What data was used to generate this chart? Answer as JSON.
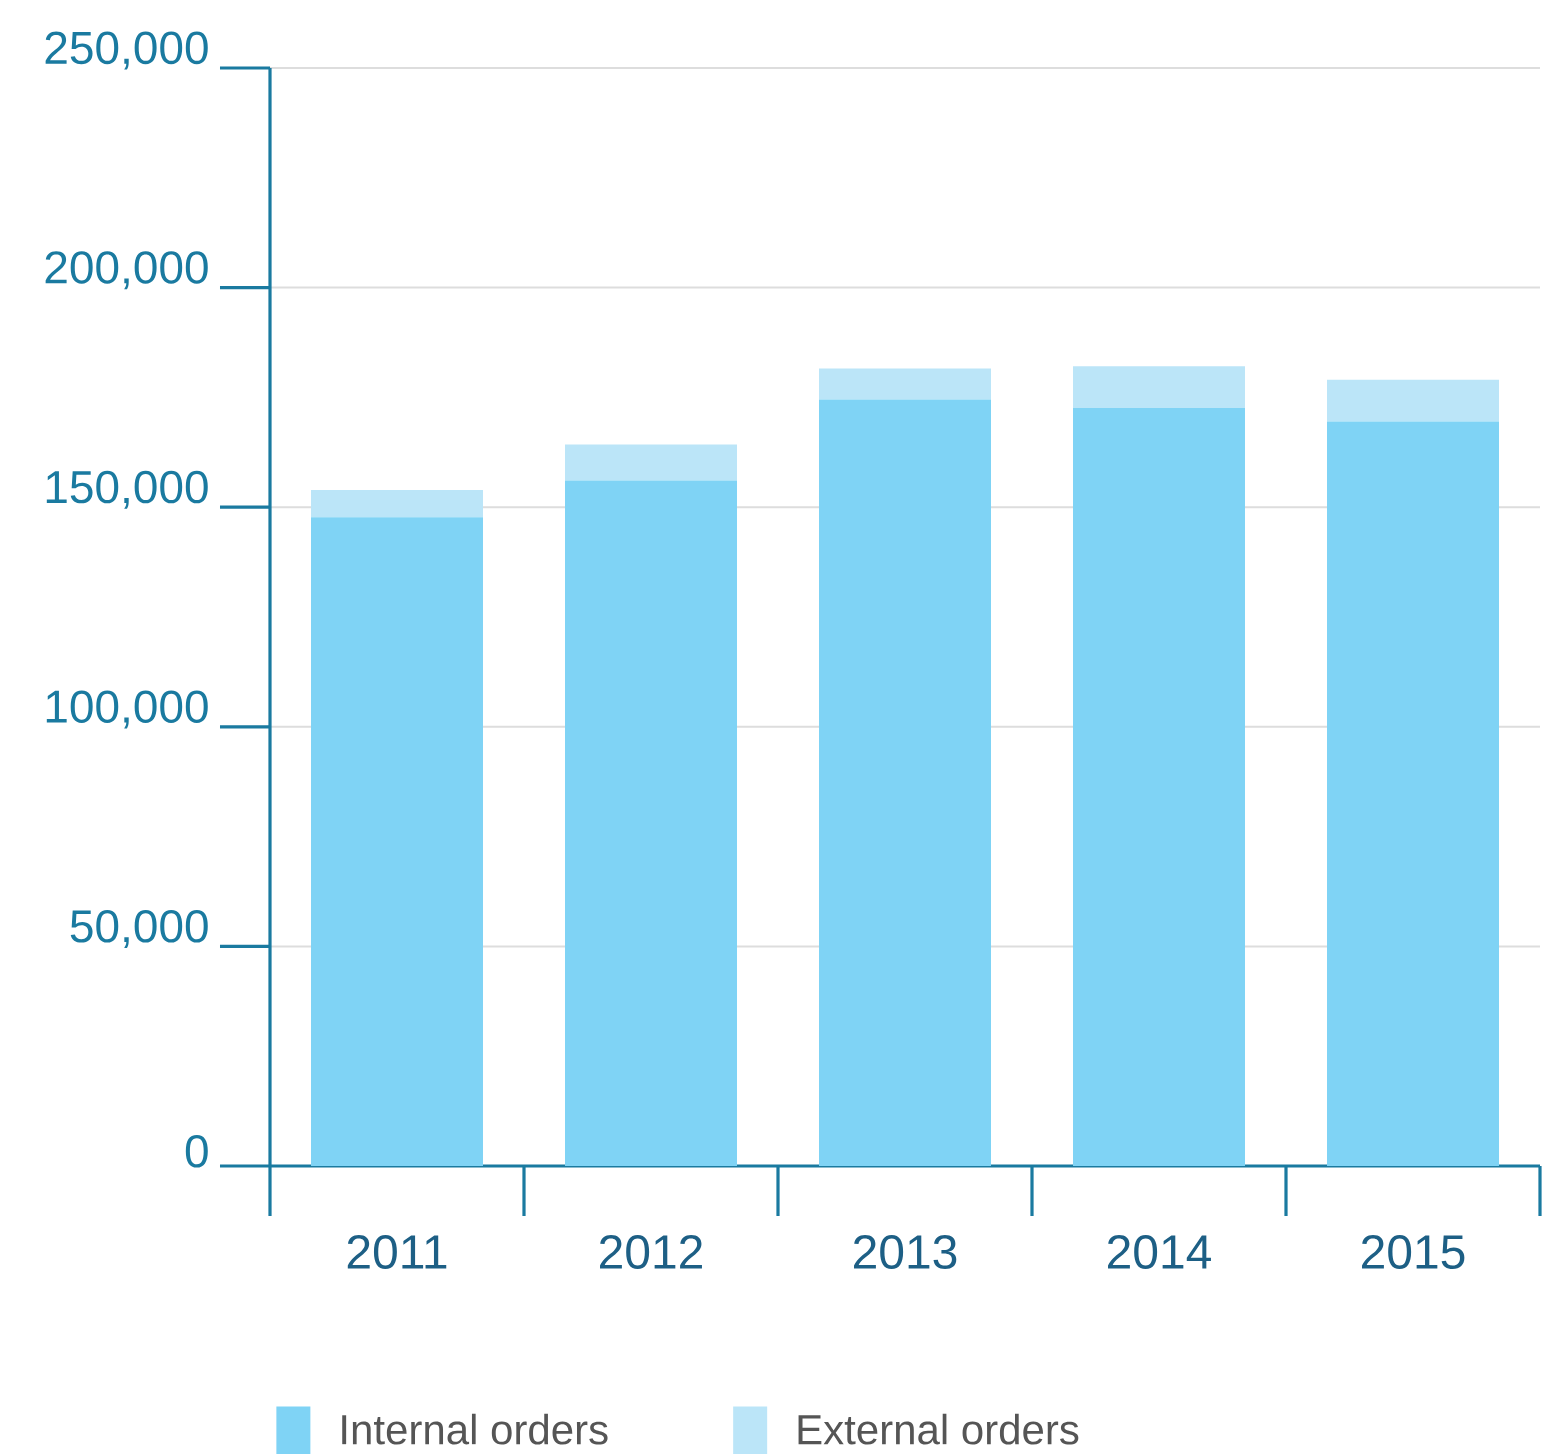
{
  "chart_data": {
    "type": "bar",
    "stacked": true,
    "categories": [
      "2011",
      "2012",
      "2013",
      "2014",
      "2015"
    ],
    "series": [
      {
        "name": "Internal orders",
        "color": "#7fd3f5",
        "values": [
          147700,
          156100,
          174500,
          172600,
          169500
        ]
      },
      {
        "name": "External orders",
        "color": "#bbe5f8",
        "values": [
          6200,
          8200,
          7100,
          9500,
          9500
        ]
      }
    ],
    "ylim": [
      0,
      250000
    ],
    "yticks": [
      {
        "value": 0,
        "label": "0"
      },
      {
        "value": 50000,
        "label": "50,000"
      },
      {
        "value": 100000,
        "label": "100,000"
      },
      {
        "value": 150000,
        "label": "150,000"
      },
      {
        "value": 200000,
        "label": "200,000"
      },
      {
        "value": 250000,
        "label": "250,000"
      }
    ],
    "grid": "y",
    "legend": "bottom"
  }
}
